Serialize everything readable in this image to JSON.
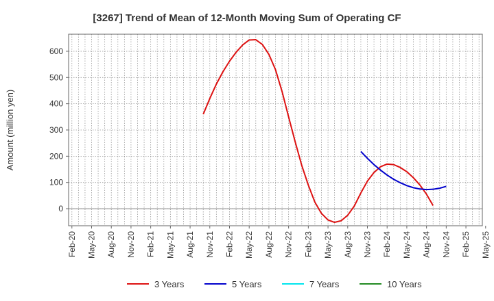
{
  "chart_data": {
    "type": "line",
    "title": "[3267]  Trend of Mean of 12-Month Moving Sum of Operating CF",
    "xlabel": "",
    "ylabel": "Amount (million yen)",
    "ylim": [
      -65,
      665
    ],
    "yticks": [
      0,
      100,
      200,
      300,
      400,
      500,
      600
    ],
    "grid": true,
    "legend_position": "bottom",
    "x_start": "Feb-20",
    "x_months": 63,
    "x_tick_labels": [
      "Feb-20",
      "May-20",
      "Aug-20",
      "Nov-20",
      "Feb-21",
      "May-21",
      "Aug-21",
      "Nov-21",
      "Feb-22",
      "May-22",
      "Aug-22",
      "Nov-22",
      "Feb-23",
      "May-23",
      "Aug-23",
      "Nov-23",
      "Feb-24",
      "May-24",
      "Aug-24",
      "Nov-24",
      "Feb-25",
      "May-25"
    ],
    "series": [
      {
        "name": "3 Years",
        "color": "#dd1111",
        "start_index": 20,
        "values": [
          360,
          420,
          475,
          522,
          562,
          596,
          624,
          643,
          644,
          626,
          588,
          530,
          447,
          350,
          255,
          165,
          90,
          25,
          -18,
          -43,
          -52,
          -46,
          -25,
          10,
          60,
          105,
          138,
          160,
          170,
          168,
          157,
          141,
          118,
          90,
          55,
          12
        ]
      },
      {
        "name": "5 Years",
        "color": "#0000cc",
        "start_index": 44,
        "values": [
          218,
          192,
          168,
          147,
          128,
          112,
          99,
          88,
          80,
          75,
          73,
          74,
          78,
          85
        ]
      },
      {
        "name": "7 Years",
        "color": "#00e5ee",
        "start_index": 0,
        "values": []
      },
      {
        "name": "10 Years",
        "color": "#228b22",
        "start_index": 0,
        "values": []
      }
    ]
  }
}
